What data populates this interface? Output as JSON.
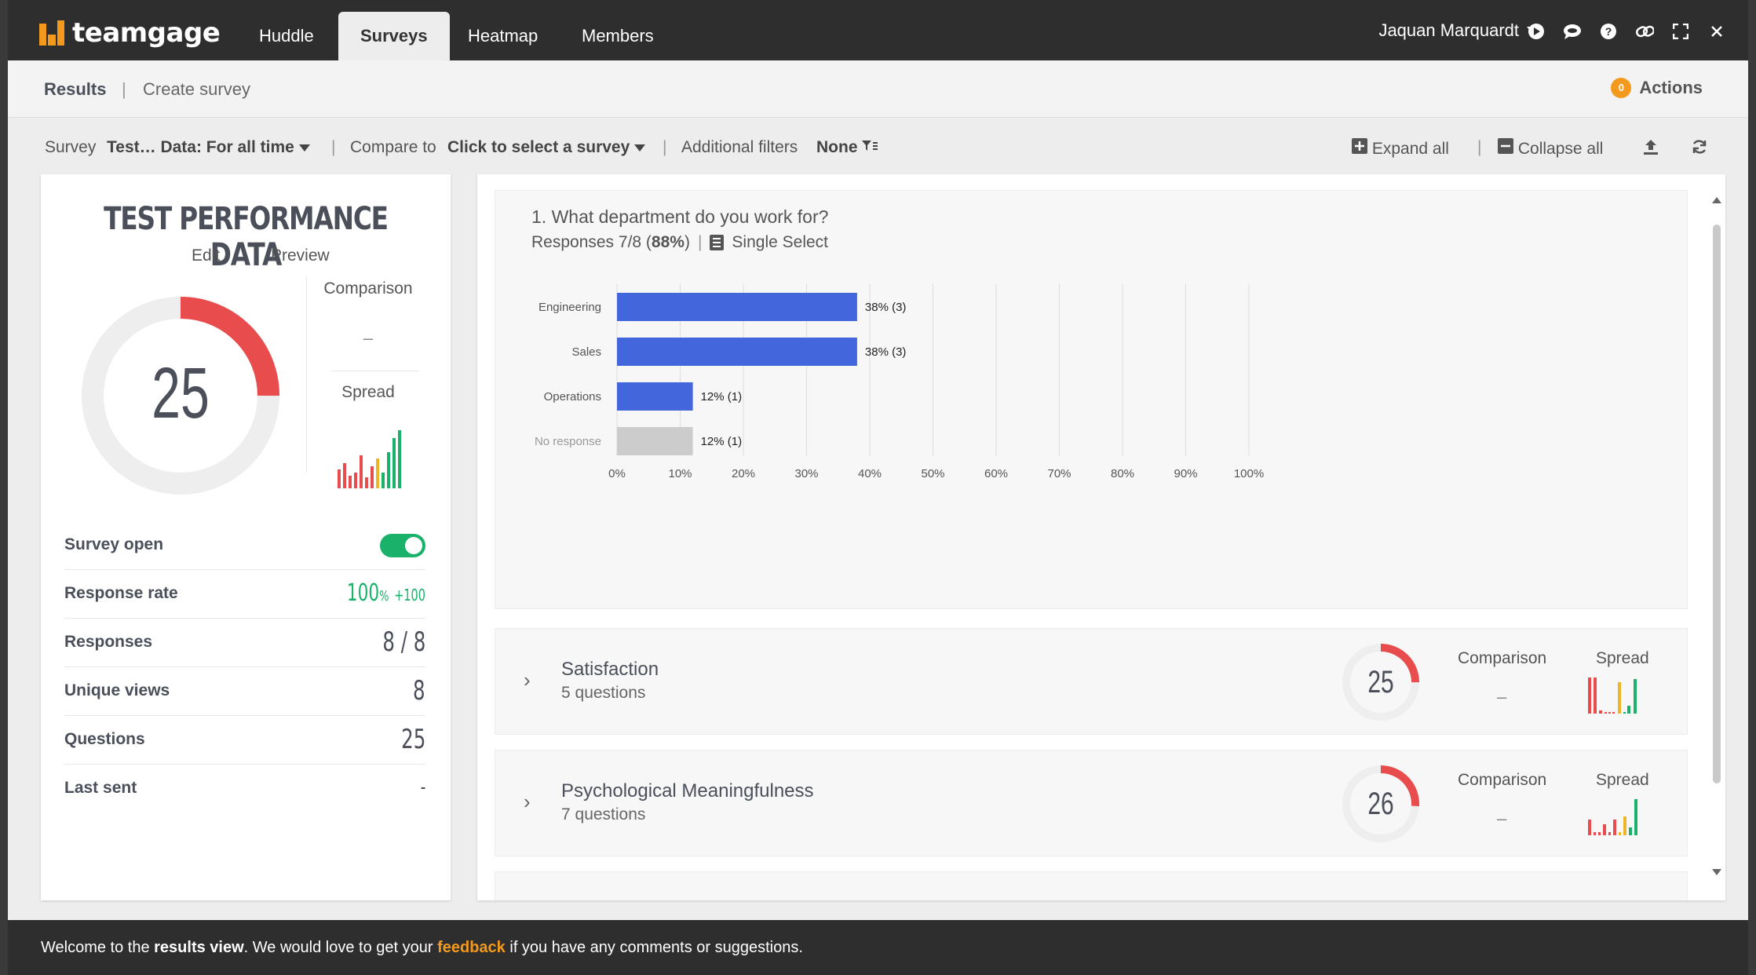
{
  "app": {
    "name": "teamgage"
  },
  "nav": {
    "tabs": [
      {
        "label": "Huddle"
      },
      {
        "label": "Surveys"
      },
      {
        "label": "Heatmap"
      },
      {
        "label": "Members"
      }
    ],
    "user": "Jaquan Marquardt"
  },
  "subnav": {
    "results": "Results",
    "create": "Create survey",
    "actions_count": "0",
    "actions": "Actions"
  },
  "filters": {
    "survey_label": "Survey",
    "survey_value": "Test… Data: For all time",
    "compare_label": "Compare to",
    "compare_value": "Click to select a survey",
    "filters_label": "Additional filters",
    "filters_value": "None",
    "expand": "Expand all",
    "collapse": "Collapse all"
  },
  "summary": {
    "title": "TEST PERFORMANCE DATA",
    "edit": "Edit",
    "preview": "Preview",
    "score": "25",
    "score_fraction": 0.25,
    "comparison_label": "Comparison",
    "comparison_value": "–",
    "spread_label": "Spread",
    "stats": [
      {
        "label": "Survey open",
        "value": ""
      },
      {
        "label": "Response rate",
        "value": "100",
        "unit": "%",
        "delta": "+100"
      },
      {
        "label": "Responses",
        "value": "8 / 8"
      },
      {
        "label": "Unique views",
        "value": "8"
      },
      {
        "label": "Questions",
        "value": "25"
      },
      {
        "label": "Last sent",
        "value": "-"
      }
    ]
  },
  "question": {
    "title": "1. What department do you work for?",
    "responses_prefix": "Responses 7/8 (",
    "responses_pct": "88%",
    "responses_suffix": ")",
    "type": "Single Select"
  },
  "chart_data": {
    "type": "bar",
    "orientation": "horizontal",
    "categories": [
      "Engineering",
      "Sales",
      "Operations",
      "No response"
    ],
    "values": [
      38,
      38,
      12,
      12
    ],
    "data_labels": [
      "38% (3)",
      "38% (3)",
      "12% (1)",
      "12% (1)"
    ],
    "colors": [
      "#4466dd",
      "#4466dd",
      "#4466dd",
      "#cccccc"
    ],
    "xlim": [
      0,
      100
    ],
    "xticks": [
      "0%",
      "10%",
      "20%",
      "30%",
      "40%",
      "50%",
      "60%",
      "70%",
      "80%",
      "90%",
      "100%"
    ],
    "grid": true
  },
  "sections": [
    {
      "title": "Satisfaction",
      "questions": "5 questions",
      "score": "25",
      "score_fraction": 0.25,
      "comparison_label": "Comparison",
      "comparison_value": "–",
      "spread_label": "Spread"
    },
    {
      "title": "Psychological Meaningfulness",
      "questions": "7 questions",
      "score": "26",
      "score_fraction": 0.26,
      "comparison_label": "Comparison",
      "comparison_value": "–",
      "spread_label": "Spread"
    }
  ],
  "footer": {
    "p1": "Welcome to the ",
    "b1": "results view",
    "p2": ". We would love to get your ",
    "link": "feedback",
    "p3": " if you have any comments or suggestions."
  },
  "colors": {
    "accent": "#f39a1e",
    "bar": "#4466dd",
    "score_red": "#e84c4c",
    "green": "#1ab26b"
  }
}
